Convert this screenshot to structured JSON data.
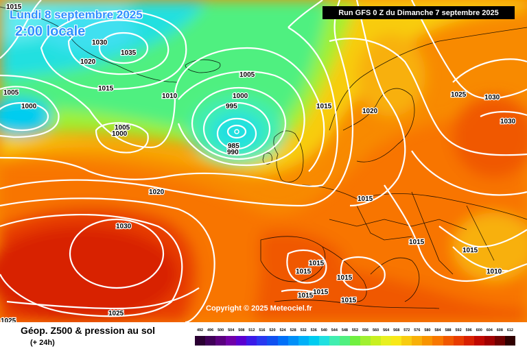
{
  "header": {
    "date": "Lundi 8 septembre 2025",
    "time": "2:00 locale",
    "run": "Run GFS 0 Z du Dimanche 7 septembre 2025"
  },
  "copyright": "Copyright © 2025 Meteociel.fr",
  "product": {
    "title": "Géop. Z500 & pression au sol",
    "subtitle": "(+ 24h)"
  },
  "legend": {
    "values": [
      "492",
      "496",
      "500",
      "504",
      "508",
      "512",
      "516",
      "520",
      "524",
      "528",
      "532",
      "536",
      "540",
      "544",
      "548",
      "552",
      "556",
      "560",
      "564",
      "568",
      "572",
      "576",
      "580",
      "584",
      "588",
      "592",
      "596",
      "600",
      "604",
      "608",
      "612"
    ],
    "colors": [
      "#2a0032",
      "#400058",
      "#5a007e",
      "#7000a8",
      "#5a00d0",
      "#3a1ae8",
      "#2838f0",
      "#1050f0",
      "#0070f8",
      "#0090f8",
      "#00b0f8",
      "#00ccf0",
      "#20e0e0",
      "#40eeb0",
      "#50f080",
      "#70f040",
      "#a0f030",
      "#c8f020",
      "#e8f020",
      "#f8e818",
      "#f8cc10",
      "#f8b008",
      "#f89400",
      "#f87800",
      "#f05800",
      "#e83c00",
      "#d82000",
      "#c00800",
      "#a00000",
      "#700000",
      "#300000"
    ]
  },
  "map": {
    "lows": [
      "995",
      "985"
    ],
    "highs": [
      "1035",
      "1030"
    ],
    "isobar_labels": [
      "1015",
      "1030",
      "1035",
      "1020",
      "1005",
      "1000",
      "995",
      "1015",
      "1010",
      "1005",
      "1000",
      "995",
      "985",
      "990",
      "1005",
      "1000",
      "1015",
      "1020",
      "1025",
      "1030",
      "1030",
      "1020",
      "1030",
      "1015",
      "1015",
      "1015",
      "1010",
      "1015",
      "1015",
      "1015",
      "1015",
      "1015",
      "1025",
      "1025",
      "1015"
    ]
  }
}
